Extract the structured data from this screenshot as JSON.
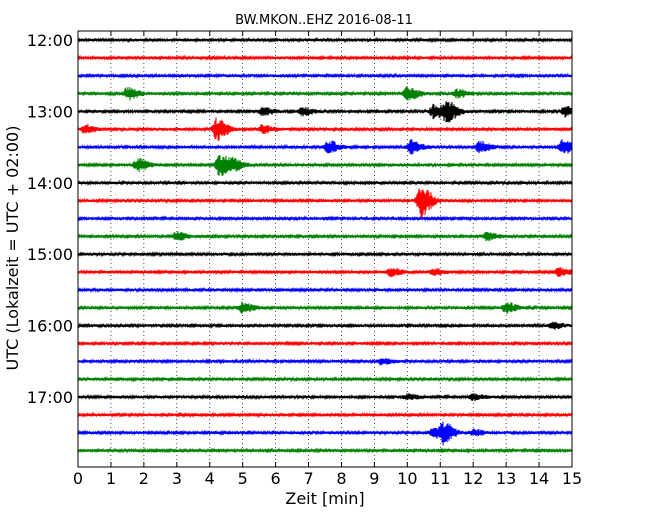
{
  "chart_data": {
    "type": "line",
    "title": "BW.MKON..EHZ 2016-08-11",
    "xlabel": "Zeit  [min]",
    "ylabel": "UTC (Lokalzeit = UTC + 02:00)",
    "xlim": [
      0,
      15
    ],
    "x_ticks": [
      0,
      1,
      2,
      3,
      4,
      5,
      6,
      7,
      8,
      9,
      10,
      11,
      12,
      13,
      14,
      15
    ],
    "x_tick_labels": [
      "0",
      "1",
      "2",
      "3",
      "4",
      "5",
      "6",
      "7",
      "8",
      "9",
      "10",
      "11",
      "12",
      "13",
      "14",
      "15"
    ],
    "grid": "vertical dotted at each minute",
    "y_tick_labels": [
      "12:00",
      "13:00",
      "14:00",
      "15:00",
      "16:00",
      "17:00"
    ],
    "trace_colors": [
      "#000000",
      "#ff0000",
      "#0000ff",
      "#008000"
    ],
    "series": [
      {
        "time": "12:00",
        "color": "#000000",
        "events": []
      },
      {
        "time": "12:15",
        "color": "#ff0000",
        "events": []
      },
      {
        "time": "12:30",
        "color": "#0000ff",
        "events": []
      },
      {
        "time": "12:45",
        "color": "#008000",
        "events": [
          {
            "x": 1.5,
            "amp": 6
          },
          {
            "x": 10.0,
            "amp": 7
          },
          {
            "x": 11.5,
            "amp": 4
          }
        ]
      },
      {
        "time": "13:00",
        "color": "#000000",
        "events": [
          {
            "x": 5.6,
            "amp": 4
          },
          {
            "x": 6.8,
            "amp": 4
          },
          {
            "x": 10.8,
            "amp": 7
          },
          {
            "x": 11.2,
            "amp": 10
          },
          {
            "x": 14.8,
            "amp": 5
          }
        ]
      },
      {
        "time": "13:15",
        "color": "#ff0000",
        "events": [
          {
            "x": 0.2,
            "amp": 4
          },
          {
            "x": 4.2,
            "amp": 11
          },
          {
            "x": 5.6,
            "amp": 4
          }
        ]
      },
      {
        "time": "13:30",
        "color": "#0000ff",
        "events": [
          {
            "x": 7.6,
            "amp": 6
          },
          {
            "x": 10.1,
            "amp": 7
          },
          {
            "x": 12.2,
            "amp": 6
          },
          {
            "x": 14.7,
            "amp": 7
          }
        ]
      },
      {
        "time": "13:45",
        "color": "#008000",
        "events": [
          {
            "x": 1.8,
            "amp": 6
          },
          {
            "x": 4.3,
            "amp": 11
          },
          {
            "x": 4.7,
            "amp": 5
          }
        ]
      },
      {
        "time": "14:00",
        "color": "#000000",
        "events": []
      },
      {
        "time": "14:15",
        "color": "#ff0000",
        "events": [
          {
            "x": 10.4,
            "amp": 17
          }
        ]
      },
      {
        "time": "14:30",
        "color": "#0000ff",
        "events": []
      },
      {
        "time": "14:45",
        "color": "#008000",
        "events": [
          {
            "x": 3.0,
            "amp": 4
          },
          {
            "x": 12.4,
            "amp": 4
          }
        ]
      },
      {
        "time": "15:00",
        "color": "#000000",
        "events": []
      },
      {
        "time": "15:15",
        "color": "#ff0000",
        "events": [
          {
            "x": 9.5,
            "amp": 4
          },
          {
            "x": 10.8,
            "amp": 3
          },
          {
            "x": 14.6,
            "amp": 4
          }
        ]
      },
      {
        "time": "15:30",
        "color": "#0000ff",
        "events": []
      },
      {
        "time": "15:45",
        "color": "#008000",
        "events": [
          {
            "x": 5.0,
            "amp": 5
          },
          {
            "x": 13.0,
            "amp": 5
          }
        ]
      },
      {
        "time": "16:00",
        "color": "#000000",
        "events": [
          {
            "x": 14.4,
            "amp": 3
          }
        ]
      },
      {
        "time": "16:15",
        "color": "#ff0000",
        "events": []
      },
      {
        "time": "16:30",
        "color": "#0000ff",
        "events": [
          {
            "x": 9.2,
            "amp": 3
          }
        ]
      },
      {
        "time": "16:45",
        "color": "#008000",
        "events": []
      },
      {
        "time": "17:00",
        "color": "#000000",
        "events": [
          {
            "x": 10.0,
            "amp": 3
          },
          {
            "x": 12.0,
            "amp": 3
          }
        ]
      },
      {
        "time": "17:15",
        "color": "#ff0000",
        "events": []
      },
      {
        "time": "17:30",
        "color": "#0000ff",
        "events": [
          {
            "x": 10.8,
            "amp": 5
          },
          {
            "x": 11.1,
            "amp": 9
          },
          {
            "x": 12.0,
            "amp": 3
          }
        ]
      },
      {
        "time": "17:45",
        "color": "#008000",
        "events": []
      }
    ]
  }
}
